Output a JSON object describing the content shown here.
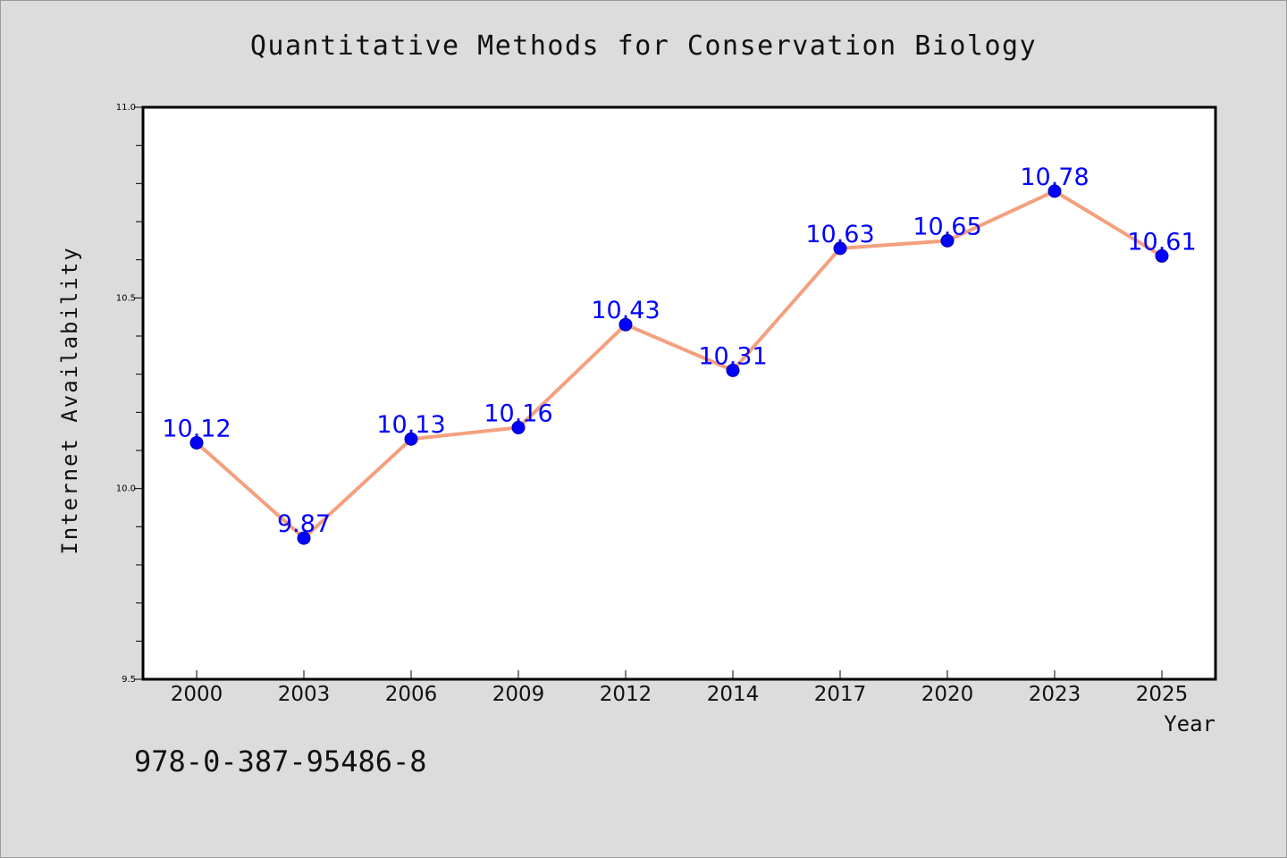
{
  "chart_data": {
    "type": "line",
    "title": "Quantitative Methods for Conservation Biology",
    "xlabel": "Year",
    "ylabel": "Internet Availability",
    "categories": [
      "2000",
      "2003",
      "2006",
      "2009",
      "2012",
      "2014",
      "2017",
      "2020",
      "2023",
      "2025"
    ],
    "series": [
      {
        "values": [
          10.12,
          9.87,
          10.13,
          10.16,
          10.43,
          10.31,
          10.63,
          10.65,
          10.78,
          10.61
        ],
        "labels": [
          "10.12",
          "9.87",
          "10.13",
          "10.16",
          "10.43",
          "10.31",
          "10.63",
          "10.65",
          "10.78",
          "10.61"
        ],
        "line_color": "#f4a07e",
        "marker_color": "#0000ff"
      }
    ],
    "ylim": [
      9.5,
      11.0
    ],
    "yticks": [
      "9.5",
      "10.0",
      "10.5",
      "11.0"
    ],
    "grid": false
  },
  "footer": {
    "isbn": "978-0-387-95486-8"
  }
}
